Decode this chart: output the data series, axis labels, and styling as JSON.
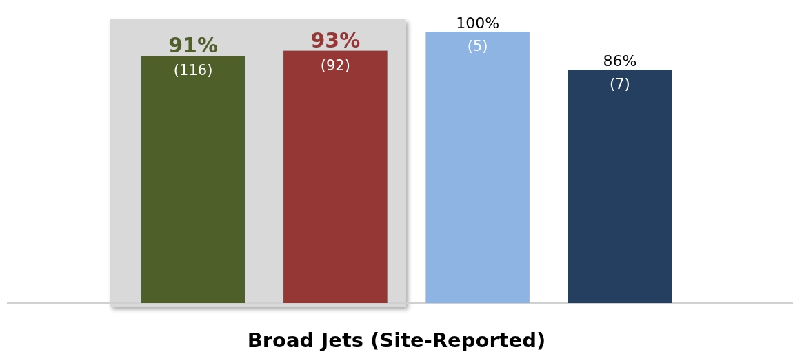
{
  "chart_data": {
    "type": "bar",
    "xlabel": "Broad Jets (Site-Reported)",
    "categories": [
      null,
      null,
      null,
      null
    ],
    "values": [
      91,
      93,
      100,
      86
    ],
    "colors": [
      "#4f5f2a",
      "#953735",
      "#8eb4e3",
      "#243f60"
    ],
    "value_labels": [
      "91% (116)",
      "93% (92)",
      "100% (5)",
      "86% (7)"
    ]
  }
}
